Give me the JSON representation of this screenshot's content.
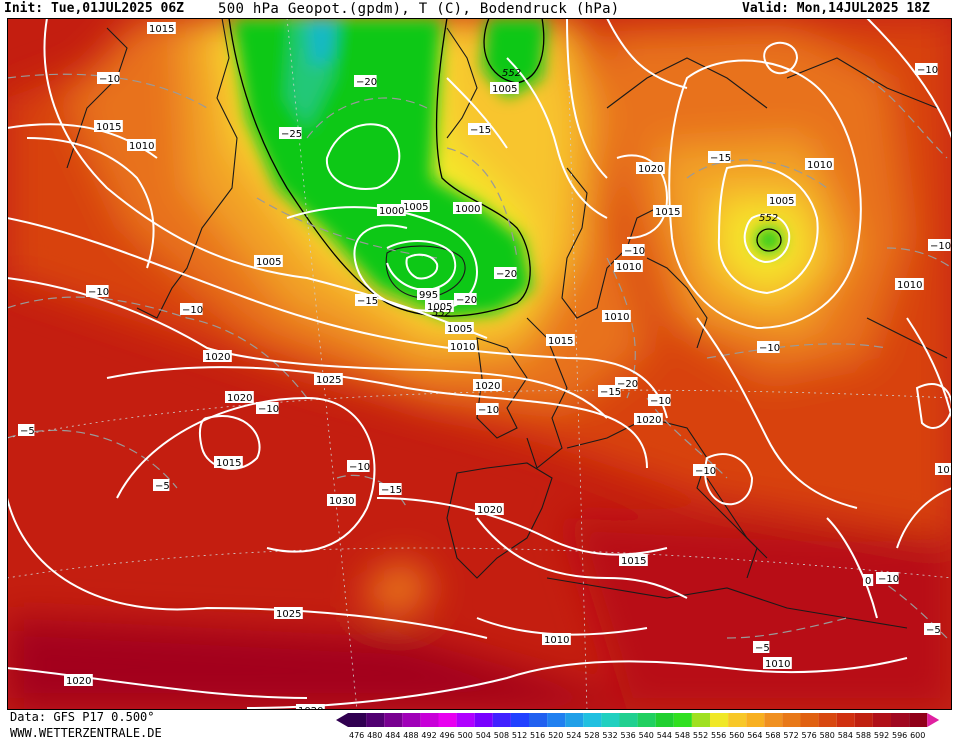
{
  "header": {
    "init": "Init: Tue,01JUL2025 06Z",
    "title": "500 hPa Geopot.(gpdm), T (C), Bodendruck (hPa)",
    "valid": "Valid: Mon,14JUL2025 18Z"
  },
  "footer": {
    "data_source": "Data: GFS P17 0.500°",
    "website": "WWW.WETTERZENTRALE.DE"
  },
  "colors": {
    "deep_red": "#a3001b",
    "red": "#c41e10",
    "red_orange": "#d8420e",
    "orange": "#e8721a",
    "light_orange": "#f2a028",
    "yellow_orange": "#f8c52e",
    "yellow": "#f4e82a",
    "light_green": "#2fe024",
    "green": "#10c818",
    "teal": "#20c878",
    "cyan": "#18b8c8",
    "isobar_line": "#ffffff",
    "isotherm_line": "#9a9a9a"
  },
  "legend": {
    "values": [
      "476",
      "480",
      "484",
      "488",
      "492",
      "496",
      "500",
      "504",
      "508",
      "512",
      "516",
      "520",
      "524",
      "528",
      "532",
      "536",
      "540",
      "544",
      "548",
      "552",
      "556",
      "560",
      "564",
      "568",
      "572",
      "576",
      "580",
      "584",
      "588",
      "592",
      "596",
      "600"
    ],
    "colors": [
      "#300050",
      "#500070",
      "#780090",
      "#a000b8",
      "#c800d8",
      "#e800f0",
      "#b000ff",
      "#7800ff",
      "#4020ff",
      "#2040ff",
      "#2060f0",
      "#2080f0",
      "#20a0e8",
      "#20c0e0",
      "#20d0c0",
      "#20d090",
      "#20d060",
      "#20d030",
      "#30e020",
      "#a0e020",
      "#f0e828",
      "#f8c828",
      "#f8b020",
      "#f09020",
      "#e87818",
      "#e06010",
      "#d84810",
      "#d03010",
      "#c02010",
      "#b01018",
      "#a00820",
      "#900018"
    ]
  },
  "isobar_labels": [
    "1015",
    "1015",
    "1010",
    "1005",
    "1020",
    "1020",
    "1015",
    "1025",
    "1030",
    "1025",
    "1020",
    "1020",
    "1005",
    "1000",
    "1005",
    "1000",
    "995",
    "1005",
    "1010",
    "1020",
    "1015",
    "1010",
    "1010",
    "1020",
    "1015",
    "1010",
    "1010",
    "1005",
    "1010",
    "1020",
    "1005",
    "1015",
    "1010",
    "1010",
    "1020"
  ],
  "temp_labels": [
    "−10",
    "−20",
    "−25",
    "−15",
    "−10",
    "−10",
    "−10",
    "−5",
    "−5",
    "−10",
    "−10",
    "−15",
    "−20",
    "−20",
    "−15",
    "−10",
    "−10",
    "−15",
    "−20",
    "−10",
    "−10",
    "−15",
    "−10",
    "−10",
    "−10",
    "−5",
    "0",
    "−5"
  ],
  "height_labels": [
    "552",
    "552",
    "552"
  ]
}
